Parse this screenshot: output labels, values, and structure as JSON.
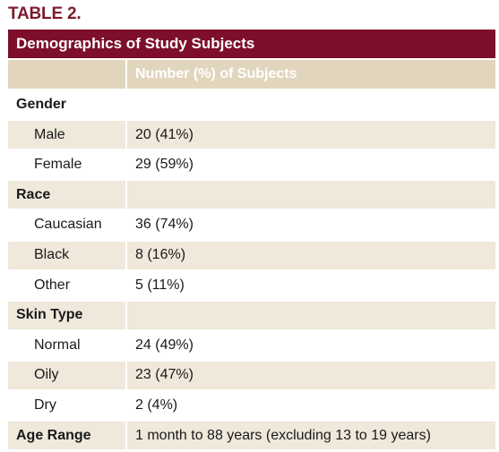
{
  "table_label": "TABLE 2.",
  "title": "Demographics of Study Subjects",
  "column_header": "Number (%) of Subjects",
  "rows": [
    {
      "label": "Gender",
      "value": ""
    },
    {
      "label": "Male",
      "value": "20 (41%)"
    },
    {
      "label": "Female",
      "value": "29 (59%)"
    },
    {
      "label": "Race",
      "value": ""
    },
    {
      "label": "Caucasian",
      "value": "36 (74%)"
    },
    {
      "label": "Black",
      "value": "8 (16%)"
    },
    {
      "label": "Other",
      "value": "5 (11%)"
    },
    {
      "label": "Skin Type",
      "value": ""
    },
    {
      "label": "Normal",
      "value": "24 (49%)"
    },
    {
      "label": "Oily",
      "value": "23 (47%)"
    },
    {
      "label": "Dry",
      "value": "2 (4%)"
    },
    {
      "label": "Age Range",
      "value": "1 month to 88 years (excluding 13 to 19 years)"
    }
  ],
  "colors": {
    "title_bar": "#7d0f2a",
    "table_label": "#7d1a2d",
    "header_fill": "#e2d5bd",
    "row_shade": "#efe8db"
  }
}
